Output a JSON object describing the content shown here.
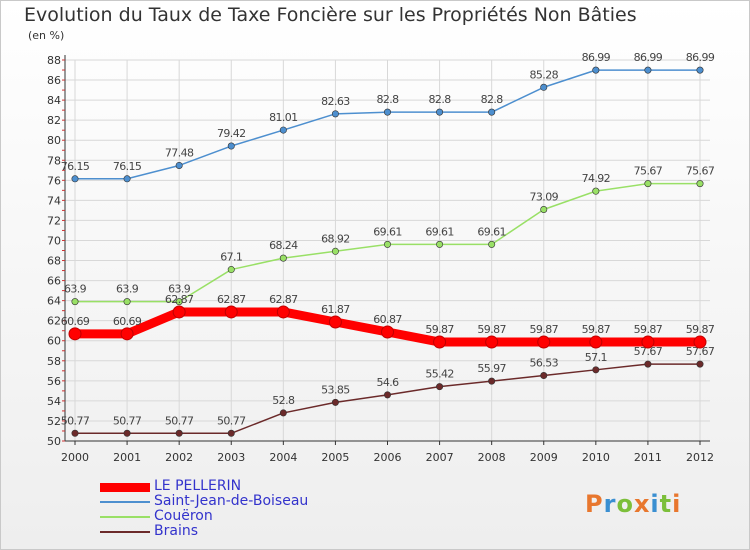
{
  "title": "Evolution du Taux de Taxe Foncière sur les Propriétés Non Bâties",
  "unit": "(en %)",
  "logo": {
    "text": "Proxiti",
    "letters": [
      {
        "ch": "P",
        "color": "#e8772e"
      },
      {
        "ch": "r",
        "color": "#3a8fd1"
      },
      {
        "ch": "o",
        "color": "#7cbf3a"
      },
      {
        "ch": "x",
        "color": "#e8772e"
      },
      {
        "ch": "i",
        "color": "#3a8fd1"
      },
      {
        "ch": "t",
        "color": "#7cbf3a"
      },
      {
        "ch": "i",
        "color": "#e8772e"
      }
    ]
  },
  "chart_data": {
    "type": "line",
    "title": "Evolution du Taux de Taxe Foncière sur les Propriétés Non Bâties",
    "ylabel": "(en %)",
    "x": [
      2000,
      2001,
      2002,
      2003,
      2004,
      2005,
      2006,
      2007,
      2008,
      2009,
      2010,
      2011,
      2012
    ],
    "ylim": [
      50,
      88
    ],
    "yticks": [
      50,
      52,
      54,
      56,
      58,
      60,
      62,
      64,
      66,
      68,
      70,
      72,
      74,
      76,
      78,
      80,
      82,
      84,
      86,
      88
    ],
    "grid": true,
    "legend_position": "bottom-left",
    "series": [
      {
        "name": "LE PELLERIN",
        "color": "#ff0000",
        "bold": true,
        "values": [
          60.69,
          60.69,
          62.87,
          62.87,
          62.87,
          61.87,
          60.87,
          59.87,
          59.87,
          59.87,
          59.87,
          59.87,
          59.87
        ],
        "labels": [
          "60.69",
          "60.69",
          "62.87",
          "62.87",
          "62.87",
          "61.87",
          "60.87",
          "59.87",
          "59.87",
          "59.87",
          "59.87",
          "59.87",
          "59.87"
        ]
      },
      {
        "name": "Saint-Jean-de-Boiseau",
        "color": "#4d8fcf",
        "bold": false,
        "values": [
          76.15,
          76.15,
          77.48,
          79.42,
          81.01,
          82.63,
          82.8,
          82.8,
          82.8,
          85.28,
          86.99,
          86.99,
          86.99
        ],
        "labels": [
          "76.15",
          "76.15",
          "77.48",
          "79.42",
          "81.01",
          "82.63",
          "82.8",
          "82.8",
          "82.8",
          "85.28",
          "86.99",
          "86.99",
          "86.99"
        ]
      },
      {
        "name": "Couëron",
        "color": "#99e066",
        "bold": false,
        "values": [
          63.9,
          63.9,
          63.9,
          67.1,
          68.24,
          68.92,
          69.61,
          69.61,
          69.61,
          73.09,
          74.92,
          75.67,
          75.67
        ],
        "labels": [
          "63.9",
          "63.9",
          "63.9",
          "67.1",
          "68.24",
          "68.92",
          "69.61",
          "69.61",
          "69.61",
          "73.09",
          "74.92",
          "75.67",
          "75.67"
        ]
      },
      {
        "name": "Brains",
        "color": "#6b2a2a",
        "bold": false,
        "values": [
          50.77,
          50.77,
          50.77,
          50.77,
          52.8,
          53.85,
          54.6,
          55.42,
          55.97,
          56.53,
          57.1,
          57.67,
          57.67
        ],
        "labels": [
          "50.77",
          "50.77",
          "50.77",
          "50.77",
          "52.8",
          "53.85",
          "54.6",
          "55.42",
          "55.97",
          "56.53",
          "57.1",
          "57.67",
          "57.67"
        ]
      }
    ]
  }
}
